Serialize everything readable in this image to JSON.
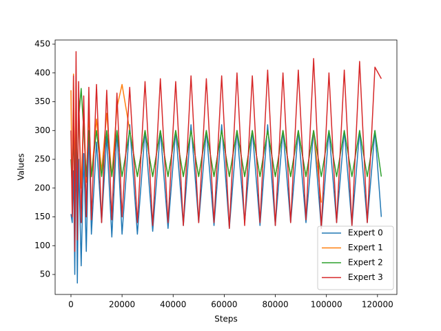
{
  "chart_data": {
    "type": "line",
    "x_label": "Steps",
    "y_label": "Values",
    "x": [
      0,
      500,
      1000,
      1500,
      2000,
      2500,
      3000,
      4000,
      5000,
      6000,
      7000,
      8000,
      10000,
      12000,
      14000,
      16000,
      18000,
      20000,
      23000,
      26000,
      29000,
      32000,
      35000,
      38000,
      41000,
      44000,
      47000,
      50000,
      53000,
      56000,
      59000,
      62000,
      65000,
      68000,
      71000,
      74000,
      77000,
      80000,
      83000,
      86000,
      89000,
      92000,
      95000,
      98000,
      101000,
      104000,
      107000,
      110000,
      113000,
      116000,
      119000,
      121500
    ],
    "series": [
      {
        "name": "Expert 0",
        "color": "#1f77b4",
        "values": [
          155,
          140,
          230,
          50,
          300,
          35,
          250,
          65,
          260,
          90,
          300,
          120,
          280,
          140,
          290,
          115,
          300,
          120,
          310,
          120,
          300,
          125,
          300,
          130,
          300,
          135,
          310,
          140,
          300,
          135,
          310,
          130,
          300,
          140,
          300,
          135,
          310,
          135,
          300,
          140,
          300,
          140,
          300,
          130,
          300,
          140,
          300,
          135,
          300,
          140,
          300,
          150
        ]
      },
      {
        "name": "Expert 1",
        "color": "#ff7f0e",
        "values": [
          370,
          160,
          398,
          213,
          360,
          180,
          350,
          200,
          340,
          210,
          330,
          220,
          320,
          230,
          330,
          220,
          340,
          380,
          300,
          220,
          300,
          220,
          300,
          220,
          300,
          220,
          300,
          220,
          300,
          220,
          300,
          220,
          300,
          220,
          300,
          220,
          300,
          220,
          300,
          220,
          300,
          220,
          300,
          175,
          null,
          null,
          null,
          null,
          null,
          null,
          null,
          null
        ]
      },
      {
        "name": "Expert 2",
        "color": "#2ca02c",
        "values": [
          250,
          200,
          300,
          200,
          310,
          210,
          320,
          373,
          300,
          220,
          300,
          220,
          300,
          220,
          300,
          220,
          300,
          220,
          300,
          220,
          300,
          220,
          300,
          220,
          300,
          220,
          300,
          220,
          300,
          220,
          300,
          220,
          300,
          220,
          300,
          220,
          300,
          220,
          300,
          220,
          300,
          220,
          300,
          220,
          300,
          220,
          300,
          220,
          300,
          220,
          300,
          220
        ]
      },
      {
        "name": "Expert 3",
        "color": "#d62728",
        "values": [
          300,
          150,
          395,
          90,
          437,
          110,
          385,
          140,
          360,
          150,
          375,
          145,
          380,
          140,
          370,
          145,
          365,
          150,
          375,
          140,
          385,
          135,
          390,
          140,
          385,
          135,
          395,
          140,
          390,
          140,
          395,
          130,
          400,
          135,
          395,
          140,
          405,
          135,
          400,
          140,
          405,
          145,
          425,
          130,
          400,
          140,
          405,
          135,
          420,
          140,
          410,
          390
        ]
      }
    ],
    "xlim": [
      -6200,
      127600
    ],
    "ylim": [
      15.3,
      457.2
    ],
    "xticks": [
      0,
      20000,
      40000,
      60000,
      80000,
      100000,
      120000
    ],
    "yticks": [
      50,
      100,
      150,
      200,
      250,
      300,
      350,
      400,
      450
    ],
    "legend": "lower right"
  }
}
